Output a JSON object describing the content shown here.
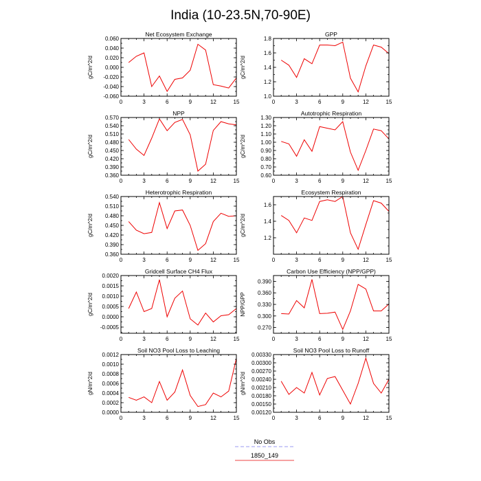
{
  "figure_title": "India (10-23.5N,70-90E)",
  "legend": {
    "entries": [
      {
        "label": "No Obs",
        "color": "#9a9af0",
        "style": "dashed"
      },
      {
        "label": "1850_149",
        "color": "#ee4444",
        "style": "solid"
      }
    ]
  },
  "chart_data": [
    {
      "type": "line",
      "title": "Net Ecosystem Exchange",
      "ylabel": "gC/m^2/d",
      "xlim": [
        0,
        15
      ],
      "xticks": [
        0,
        3,
        6,
        9,
        12,
        15
      ],
      "ylim": [
        -0.06,
        0.06
      ],
      "yticks": [
        -0.06,
        -0.04,
        -0.02,
        0.0,
        0.02,
        0.04,
        0.06
      ],
      "ytick_labels": [
        "-0.060",
        "-0.040",
        "-0.020",
        "0.000",
        "0.020",
        "0.040",
        "0.060"
      ],
      "series": [
        {
          "color": "#ee0000",
          "x": [
            1,
            2,
            3,
            4,
            5,
            6,
            7,
            8,
            9,
            10,
            11,
            12,
            13,
            14,
            15
          ],
          "values": [
            0.01,
            0.023,
            0.03,
            -0.04,
            -0.018,
            -0.05,
            -0.025,
            -0.022,
            -0.006,
            0.048,
            0.036,
            -0.036,
            -0.039,
            -0.043,
            -0.022
          ]
        }
      ]
    },
    {
      "type": "line",
      "title": "GPP",
      "ylabel": "gC/m^2/d",
      "xlim": [
        0,
        15
      ],
      "xticks": [
        0,
        3,
        6,
        9,
        12,
        15
      ],
      "ylim": [
        1.0,
        1.8
      ],
      "yticks": [
        1.0,
        1.2,
        1.4,
        1.6,
        1.8
      ],
      "ytick_labels": [
        "1.0",
        "1.2",
        "1.4",
        "1.6",
        "1.8"
      ],
      "series": [
        {
          "color": "#ee0000",
          "x": [
            1,
            2,
            3,
            4,
            5,
            6,
            7,
            8,
            9,
            10,
            11,
            12,
            13,
            14,
            15
          ],
          "values": [
            1.5,
            1.43,
            1.26,
            1.52,
            1.45,
            1.71,
            1.71,
            1.7,
            1.75,
            1.25,
            1.06,
            1.42,
            1.71,
            1.68,
            1.59
          ]
        }
      ]
    },
    {
      "type": "line",
      "title": "NPP",
      "ylabel": "gC/m^2/d",
      "xlim": [
        0,
        15
      ],
      "xticks": [
        0,
        3,
        6,
        9,
        12,
        15
      ],
      "ylim": [
        0.36,
        0.57
      ],
      "yticks": [
        0.36,
        0.39,
        0.42,
        0.45,
        0.48,
        0.51,
        0.54,
        0.57
      ],
      "ytick_labels": [
        "0.360",
        "0.390",
        "0.420",
        "0.450",
        "0.480",
        "0.510",
        "0.540",
        "0.570"
      ],
      "series": [
        {
          "color": "#ee0000",
          "x": [
            1,
            2,
            3,
            4,
            5,
            6,
            7,
            8,
            9,
            10,
            11,
            12,
            13,
            14,
            15
          ],
          "values": [
            0.49,
            0.455,
            0.432,
            0.495,
            0.565,
            0.522,
            0.552,
            0.563,
            0.507,
            0.375,
            0.4,
            0.523,
            0.555,
            0.547,
            0.543
          ]
        }
      ]
    },
    {
      "type": "line",
      "title": "Autotrophic Respiration",
      "ylabel": "gC/m^2/d",
      "xlim": [
        0,
        15
      ],
      "xticks": [
        0,
        3,
        6,
        9,
        12,
        15
      ],
      "ylim": [
        0.6,
        1.3
      ],
      "yticks": [
        0.6,
        0.7,
        0.8,
        0.9,
        1.0,
        1.1,
        1.2,
        1.3
      ],
      "ytick_labels": [
        "0.60",
        "0.70",
        "0.80",
        "0.90",
        "1.00",
        "1.10",
        "1.20",
        "1.30"
      ],
      "series": [
        {
          "color": "#ee0000",
          "x": [
            1,
            2,
            3,
            4,
            5,
            6,
            7,
            8,
            9,
            10,
            11,
            12,
            13,
            14,
            15
          ],
          "values": [
            1.01,
            0.98,
            0.83,
            1.03,
            0.89,
            1.19,
            1.17,
            1.15,
            1.25,
            0.88,
            0.66,
            0.9,
            1.16,
            1.14,
            1.04
          ]
        }
      ]
    },
    {
      "type": "line",
      "title": "Heterotrophic Respiration",
      "ylabel": "gC/m^2/d",
      "xlim": [
        0,
        15
      ],
      "xticks": [
        0,
        3,
        6,
        9,
        12,
        15
      ],
      "ylim": [
        0.36,
        0.54
      ],
      "yticks": [
        0.36,
        0.39,
        0.42,
        0.45,
        0.48,
        0.51,
        0.54
      ],
      "ytick_labels": [
        "0.360",
        "0.390",
        "0.420",
        "0.450",
        "0.480",
        "0.510",
        "0.540"
      ],
      "series": [
        {
          "color": "#ee0000",
          "x": [
            1,
            2,
            3,
            4,
            5,
            6,
            7,
            8,
            9,
            10,
            11,
            12,
            13,
            14,
            15
          ],
          "values": [
            0.462,
            0.435,
            0.424,
            0.428,
            0.521,
            0.44,
            0.495,
            0.498,
            0.45,
            0.372,
            0.393,
            0.462,
            0.488,
            0.478,
            0.48
          ]
        }
      ]
    },
    {
      "type": "line",
      "title": "Ecosystem Respiration",
      "ylabel": "gC/m^2/d",
      "xlim": [
        0,
        15
      ],
      "xticks": [
        0,
        3,
        6,
        9,
        12,
        15
      ],
      "ylim": [
        1.0,
        1.7
      ],
      "yticks": [
        1.2,
        1.4,
        1.6
      ],
      "ytick_labels": [
        "1.2",
        "1.4",
        "1.6"
      ],
      "series": [
        {
          "color": "#ee0000",
          "x": [
            1,
            2,
            3,
            4,
            5,
            6,
            7,
            8,
            9,
            10,
            11,
            12,
            13,
            14,
            15
          ],
          "values": [
            1.47,
            1.41,
            1.26,
            1.44,
            1.41,
            1.64,
            1.66,
            1.64,
            1.7,
            1.26,
            1.06,
            1.36,
            1.65,
            1.62,
            1.52
          ]
        }
      ]
    },
    {
      "type": "line",
      "title": "Gridcell Surface CH4 Flux",
      "ylabel": "gC/m^2/d",
      "xlim": [
        0,
        15
      ],
      "xticks": [
        0,
        3,
        6,
        9,
        12,
        15
      ],
      "ylim": [
        -0.0008,
        0.002
      ],
      "yticks": [
        -0.0005,
        0.0,
        0.0005,
        0.001,
        0.0015,
        0.002
      ],
      "ytick_labels": [
        "-0.0005",
        "0.0000",
        "0.0005",
        "0.0010",
        "0.0015",
        "0.0020"
      ],
      "series": [
        {
          "color": "#ee0000",
          "x": [
            1,
            2,
            3,
            4,
            5,
            6,
            7,
            8,
            9,
            10,
            11,
            12,
            13,
            14,
            15
          ],
          "values": [
            0.0004,
            0.0012,
            0.00025,
            0.0004,
            0.0018,
            0.0,
            0.0009,
            0.00125,
            -0.0001,
            -0.0004,
            0.00018,
            -0.00025,
            5e-05,
            0.0001,
            0.0004
          ]
        }
      ]
    },
    {
      "type": "line",
      "title": "Carbon Use Efficiency (NPP/GPP)",
      "ylabel": "NPP/GPP",
      "xlim": [
        0,
        15
      ],
      "xticks": [
        0,
        3,
        6,
        9,
        12,
        15
      ],
      "ylim": [
        0.255,
        0.405
      ],
      "yticks": [
        0.27,
        0.3,
        0.33,
        0.36,
        0.39
      ],
      "ytick_labels": [
        "0.270",
        "0.300",
        "0.330",
        "0.360",
        "0.390"
      ],
      "series": [
        {
          "color": "#ee0000",
          "x": [
            1,
            2,
            3,
            4,
            5,
            6,
            7,
            8,
            9,
            10,
            11,
            12,
            13,
            14,
            15
          ],
          "values": [
            0.306,
            0.305,
            0.34,
            0.321,
            0.395,
            0.306,
            0.307,
            0.31,
            0.265,
            0.313,
            0.382,
            0.37,
            0.313,
            0.313,
            0.331
          ]
        }
      ]
    },
    {
      "type": "line",
      "title": "Soil NO3 Pool Loss to Leaching",
      "ylabel": "gN/m^2/d",
      "xlim": [
        0,
        15
      ],
      "xticks": [
        0,
        3,
        6,
        9,
        12,
        15
      ],
      "ylim": [
        0.0,
        0.0012
      ],
      "yticks": [
        0.0,
        0.0002,
        0.0004,
        0.0006,
        0.0008,
        0.001,
        0.0012
      ],
      "ytick_labels": [
        "0.0000",
        "0.0002",
        "0.0004",
        "0.0006",
        "0.0008",
        "0.0010",
        "0.0012"
      ],
      "series": [
        {
          "color": "#ee0000",
          "x": [
            1,
            2,
            3,
            4,
            5,
            6,
            7,
            8,
            9,
            10,
            11,
            12,
            13,
            14,
            15
          ],
          "values": [
            0.00031,
            0.00025,
            0.00032,
            0.0002,
            0.00064,
            0.00025,
            0.00042,
            0.00088,
            0.00035,
            0.00012,
            0.00016,
            0.0004,
            0.00032,
            0.00044,
            0.00112
          ]
        }
      ]
    },
    {
      "type": "line",
      "title": "Soil NO3 Pool Loss to Runoff",
      "ylabel": "gN/m^2/d",
      "xlim": [
        0,
        15
      ],
      "xticks": [
        0,
        3,
        6,
        9,
        12,
        15
      ],
      "ylim": [
        0.0012,
        0.0033
      ],
      "yticks": [
        0.0012,
        0.0015,
        0.0018,
        0.0021,
        0.0024,
        0.0027,
        0.003,
        0.0033
      ],
      "ytick_labels": [
        "0.00120",
        "0.00150",
        "0.00180",
        "0.00210",
        "0.00240",
        "0.00270",
        "0.00300",
        "0.00330"
      ],
      "series": [
        {
          "color": "#ee0000",
          "x": [
            1,
            2,
            3,
            4,
            5,
            6,
            7,
            8,
            9,
            10,
            11,
            12,
            13,
            14,
            15
          ],
          "values": [
            0.00233,
            0.00185,
            0.0021,
            0.0019,
            0.00265,
            0.00183,
            0.00243,
            0.0025,
            0.002,
            0.0015,
            0.00225,
            0.00317,
            0.00225,
            0.0019,
            0.0024
          ]
        }
      ]
    }
  ]
}
